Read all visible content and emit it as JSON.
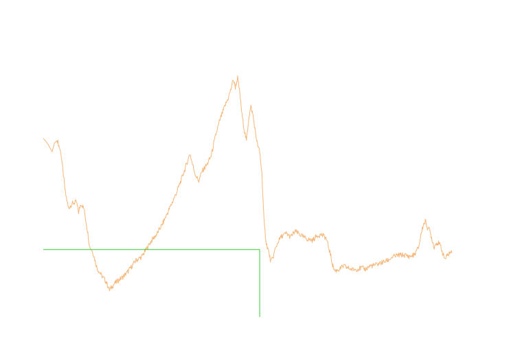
{
  "chart_data": {
    "type": "line",
    "title": "",
    "xlabel": "",
    "ylabel": "",
    "grid": false,
    "legend": "none",
    "xlim": [
      0,
      1000
    ],
    "ylim": [
      0,
      100
    ],
    "series": [
      {
        "color": "#f5b77a",
        "points": [
          [
            0,
            66.6
          ],
          [
            10,
            64.3
          ],
          [
            20,
            60.8
          ],
          [
            25,
            64.5
          ],
          [
            32,
            65.7
          ],
          [
            40,
            60.3
          ],
          [
            50,
            43.2
          ],
          [
            57,
            36.6
          ],
          [
            65,
            38.5
          ],
          [
            75,
            39.3
          ],
          [
            80,
            34.8
          ],
          [
            85,
            38.7
          ],
          [
            92,
            36.5
          ],
          [
            100,
            27.1
          ],
          [
            105,
            20.2
          ],
          [
            112,
            17.9
          ],
          [
            122,
            10.8
          ],
          [
            132,
            7.8
          ],
          [
            142,
            5.2
          ],
          [
            150,
            1.5
          ],
          [
            160,
            4.1
          ],
          [
            170,
            5.7
          ],
          [
            180,
            7.1
          ],
          [
            190,
            9.1
          ],
          [
            200,
            11.6
          ],
          [
            210,
            14.3
          ],
          [
            222,
            15.6
          ],
          [
            235,
            19.6
          ],
          [
            245,
            22.7
          ],
          [
            257,
            25.5
          ],
          [
            270,
            29.9
          ],
          [
            282,
            34.9
          ],
          [
            292,
            39.1
          ],
          [
            302,
            43.4
          ],
          [
            315,
            50.2
          ],
          [
            325,
            55.7
          ],
          [
            332,
            60.1
          ],
          [
            338,
            55.3
          ],
          [
            345,
            50.7
          ],
          [
            352,
            48.3
          ],
          [
            360,
            52.6
          ],
          [
            370,
            55.1
          ],
          [
            380,
            59.0
          ],
          [
            390,
            67.6
          ],
          [
            400,
            74.5
          ],
          [
            410,
            79.8
          ],
          [
            418,
            83.5
          ],
          [
            425,
            87.7
          ],
          [
            430,
            91.8
          ],
          [
            435,
            88.5
          ],
          [
            440,
            92.5
          ],
          [
            445,
            85.8
          ],
          [
            450,
            76.4
          ],
          [
            455,
            70.4
          ],
          [
            460,
            65.4
          ],
          [
            465,
            75.2
          ],
          [
            470,
            80.1
          ],
          [
            475,
            76.3
          ],
          [
            480,
            69.3
          ],
          [
            485,
            64.0
          ],
          [
            490,
            60.6
          ],
          [
            495,
            51.5
          ],
          [
            500,
            29.9
          ],
          [
            505,
            21.5
          ],
          [
            510,
            18.2
          ],
          [
            515,
            13.7
          ],
          [
            520,
            15.4
          ],
          [
            525,
            19.0
          ],
          [
            532,
            22.5
          ],
          [
            540,
            24.6
          ],
          [
            550,
            25.8
          ],
          [
            560,
            24.3
          ],
          [
            570,
            26.7
          ],
          [
            580,
            25.5
          ],
          [
            590,
            24.1
          ],
          [
            600,
            23.2
          ],
          [
            610,
            22.9
          ],
          [
            620,
            24.9
          ],
          [
            630,
            25.3
          ],
          [
            640,
            23.9
          ],
          [
            650,
            17.0
          ],
          [
            655,
            12.3
          ],
          [
            660,
            9.7
          ],
          [
            670,
            10.4
          ],
          [
            680,
            11.8
          ],
          [
            690,
            11.0
          ],
          [
            700,
            10.3
          ],
          [
            710,
            10.5
          ],
          [
            720,
            11.0
          ],
          [
            730,
            10.5
          ],
          [
            740,
            11.9
          ],
          [
            750,
            12.1
          ],
          [
            760,
            12.9
          ],
          [
            770,
            13.5
          ],
          [
            780,
            14.3
          ],
          [
            790,
            15.6
          ],
          [
            800,
            16.3
          ],
          [
            810,
            16.6
          ],
          [
            820,
            16.4
          ],
          [
            830,
            15.9
          ],
          [
            840,
            16.6
          ],
          [
            850,
            20.0
          ],
          [
            855,
            25.3
          ],
          [
            860,
            29.3
          ],
          [
            865,
            31.1
          ],
          [
            870,
            28.3
          ],
          [
            875,
            27.1
          ],
          [
            880,
            23.3
          ],
          [
            885,
            19.9
          ],
          [
            890,
            21.9
          ],
          [
            895,
            21.5
          ],
          [
            900,
            20.3
          ],
          [
            905,
            16.7
          ],
          [
            910,
            14.9
          ],
          [
            915,
            16.4
          ],
          [
            920,
            17.6
          ],
          [
            925,
            17.4
          ]
        ]
      }
    ],
    "annotations": [
      {
        "type": "crosshair",
        "color": "#33cc33",
        "x": 490,
        "y": 18.9
      }
    ]
  }
}
